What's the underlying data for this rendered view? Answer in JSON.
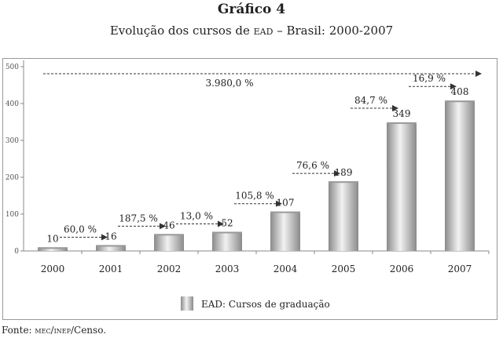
{
  "title": "Gráfico 4",
  "subtitle_pre": "Evolução dos cursos de ",
  "subtitle_sc": "ead",
  "subtitle_post": " – Brasil: 2000-2007",
  "source_pre": "Fonte: ",
  "source_sc": "mec/inep",
  "source_post": "/Censo.",
  "colors": {
    "bar_dark": "#8a8a8a",
    "bar_light": "#f2f2f2",
    "axis": "#888888",
    "text": "#222222"
  },
  "chart_data": {
    "type": "bar",
    "categories": [
      "2000",
      "2001",
      "2002",
      "2003",
      "2004",
      "2005",
      "2006",
      "2007"
    ],
    "series": [
      {
        "name": "EAD: Cursos de graduação",
        "values": [
          10,
          16,
          46,
          52,
          107,
          189,
          349,
          408
        ]
      }
    ],
    "ylim": [
      0,
      500
    ],
    "yticks": [
      0,
      100,
      200,
      300,
      400,
      500
    ],
    "data_labels": [
      "10",
      "16",
      "46",
      "52",
      "107",
      "189",
      "349",
      "408"
    ],
    "growth_annotations": [
      {
        "label": "60,0 %",
        "from": "2000",
        "to": "2001"
      },
      {
        "label": "187,5 %",
        "from": "2001",
        "to": "2002"
      },
      {
        "label": "13,0 %",
        "from": "2002",
        "to": "2003"
      },
      {
        "label": "105,8 %",
        "from": "2003",
        "to": "2004"
      },
      {
        "label": "76,6 %",
        "from": "2004",
        "to": "2005"
      },
      {
        "label": "84,7 %",
        "from": "2005",
        "to": "2006"
      },
      {
        "label": "16,9 %",
        "from": "2006",
        "to": "2007"
      }
    ],
    "total_growth_label": "3.980,0 %",
    "legend_position": "bottom-center",
    "grid": false
  }
}
